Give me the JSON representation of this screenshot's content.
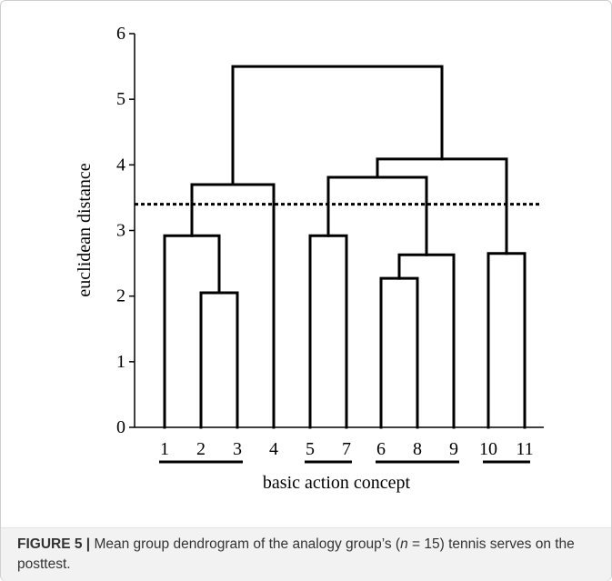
{
  "chart_data": {
    "type": "dendrogram",
    "ylabel": "euclidean distance",
    "xlabel": "basic action concept",
    "ylim": [
      0,
      6
    ],
    "yticks": [
      0,
      1,
      2,
      3,
      4,
      5,
      6
    ],
    "leaves": [
      "1",
      "2",
      "3",
      "4",
      "5",
      "7",
      "6",
      "8",
      "9",
      "10",
      "11"
    ],
    "merges": [
      {
        "a": "2",
        "b": "3",
        "height": 2.05
      },
      {
        "a": "1",
        "b": "(2,3)",
        "height": 2.92
      },
      {
        "a": "5",
        "b": "7",
        "height": 2.92
      },
      {
        "a": "6",
        "b": "8",
        "height": 2.27
      },
      {
        "a": "(6,8)",
        "b": "9",
        "height": 2.63
      },
      {
        "a": "10",
        "b": "11",
        "height": 2.65
      },
      {
        "a": "(5,7)",
        "b": "(6,8,9)",
        "height": 3.81
      },
      {
        "a": "(1,2,3)",
        "b": "4",
        "height": 3.7
      },
      {
        "a": "(5,7,6,8,9)",
        "b": "(10,11)",
        "height": 4.09
      },
      {
        "a": "(1,2,3,4)",
        "b": "(5,7,6,8,9,10,11)",
        "height": 5.5
      }
    ],
    "cutoff": 3.4,
    "cluster_groups": [
      [
        "1",
        "2",
        "3"
      ],
      [
        "5",
        "7"
      ],
      [
        "6",
        "8",
        "9"
      ],
      [
        "10",
        "11"
      ]
    ]
  },
  "caption": {
    "label": "FIGURE 5 |",
    "text_before_n": " Mean group dendrogram of the analogy group’s (",
    "n_symbol": "n",
    "text_after_n": " = 15) tennis serves on the posttest."
  }
}
